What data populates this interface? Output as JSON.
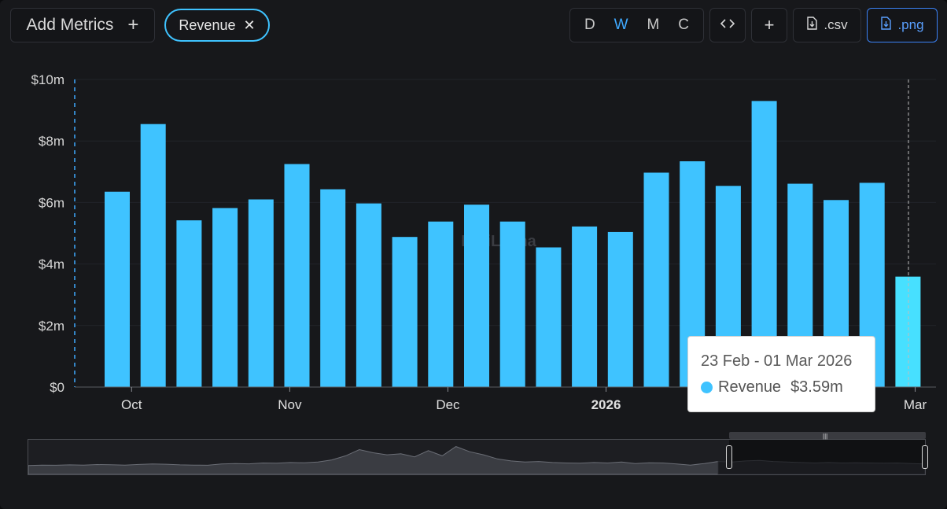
{
  "toolbar": {
    "add_metrics_label": "Add Metrics",
    "add_metrics_icon": "plus-icon",
    "chip_label": "Revenue",
    "chip_close_icon": "close-icon",
    "periods": [
      "D",
      "W",
      "M",
      "C"
    ],
    "active_period": "W",
    "embed_icon": "code-icon",
    "add_icon": "plus-icon",
    "csv_label": ".csv",
    "png_label": ".png",
    "download_icon": "file-download-icon"
  },
  "colors": {
    "accent": "#3fc3ff",
    "active_tab": "#3fa9ff",
    "hover_bar": "#47e0ff"
  },
  "watermark_text": "DefiLlama",
  "tooltip": {
    "range": "23 Feb - 01 Mar 2026",
    "series": "Revenue",
    "value": "$3.59m"
  },
  "chart_data": {
    "type": "bar",
    "title": "",
    "xlabel": "",
    "ylabel": "",
    "ylim": [
      0,
      10
    ],
    "y_unit": "$m",
    "y_ticks": [
      "$0",
      "$2m",
      "$4m",
      "$6m",
      "$8m",
      "$10m"
    ],
    "x_ticks": [
      {
        "label": "Oct",
        "bold": false,
        "at_bar": 0.4
      },
      {
        "label": "Nov",
        "bold": false,
        "at_bar": 4.8
      },
      {
        "label": "Dec",
        "bold": false,
        "at_bar": 9.2
      },
      {
        "label": "2026",
        "bold": true,
        "at_bar": 13.6
      },
      {
        "label": "Mar",
        "bold": false,
        "at_bar": 22.2
      }
    ],
    "grid": true,
    "series": [
      {
        "name": "Revenue",
        "values": [
          6.35,
          8.55,
          5.42,
          5.82,
          6.1,
          7.25,
          6.43,
          5.97,
          4.88,
          5.38,
          5.93,
          5.38,
          4.54,
          5.22,
          5.04,
          6.97,
          7.34,
          6.54,
          9.3,
          6.61,
          6.08,
          6.64,
          3.59
        ]
      }
    ],
    "highlighted_index": 22
  },
  "overview": {
    "values": [
      0.55,
      0.6,
      0.58,
      0.62,
      0.6,
      0.65,
      0.63,
      0.6,
      0.66,
      0.7,
      0.68,
      0.62,
      0.6,
      0.58,
      0.7,
      0.75,
      0.72,
      0.8,
      0.78,
      0.85,
      0.82,
      0.9,
      1.1,
      1.5,
      2.1,
      1.8,
      1.6,
      1.7,
      1.4,
      2.0,
      1.5,
      2.4,
      1.9,
      1.6,
      1.2,
      1.0,
      0.9,
      0.95,
      0.85,
      0.8,
      0.78,
      0.85,
      0.8,
      0.9,
      0.75,
      0.82,
      0.8,
      0.7,
      0.6,
      0.75,
      0.95,
      0.9,
      1.0,
      1.05,
      0.95,
      0.9,
      0.85,
      0.8,
      0.85,
      0.8,
      0.82,
      0.8,
      0.78,
      0.8,
      0.75,
      0.7
    ]
  }
}
